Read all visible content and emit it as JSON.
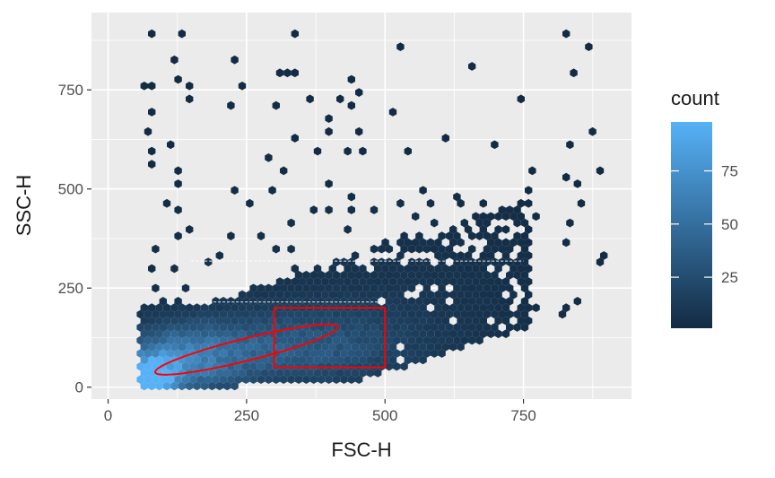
{
  "chart_data": {
    "type": "hexbin",
    "xlabel": "FSC-H",
    "ylabel": "SSC-H",
    "xlim": [
      -30,
      945
    ],
    "ylim": [
      -30,
      945
    ],
    "x_ticks": [
      0,
      250,
      500,
      750
    ],
    "y_ticks": [
      0,
      250,
      500,
      750
    ],
    "grid": true,
    "legend": {
      "title": "count",
      "position": "right",
      "range": [
        1,
        98
      ],
      "ticks": [
        25,
        50,
        75
      ],
      "low_color": "#132B43",
      "high_color": "#56B1F7"
    },
    "density_regions": [
      {
        "x_range": [
          60,
          420
        ],
        "y_range": [
          0,
          280
        ],
        "peak": [
          75,
          15
        ],
        "level": "high"
      },
      {
        "x_range": [
          120,
          600
        ],
        "y_range": [
          30,
          250
        ],
        "level": "medium"
      },
      {
        "x_range": [
          60,
          760
        ],
        "y_range": [
          0,
          520
        ],
        "level": "low"
      }
    ],
    "annotations": {
      "rectangle": {
        "x": [
          300,
          500
        ],
        "y": [
          50,
          200
        ],
        "color": "#FF0000"
      },
      "ellipse": {
        "center": [
          250,
          95
        ],
        "semi_axis_x": 170,
        "semi_axis_y": 28,
        "angle_deg": 14,
        "color": "#FF0000"
      },
      "dashed_lines": [
        {
          "x": [
            150,
            500
          ],
          "y": 215,
          "color": "#FFFFFF"
        },
        {
          "x": [
            150,
            750
          ],
          "y": 318,
          "color": "#FFFFFF"
        }
      ]
    }
  },
  "colors": {
    "panel_background": "#EBEBEB",
    "grid_major": "#FFFFFF",
    "annotation": "#FF0000"
  }
}
